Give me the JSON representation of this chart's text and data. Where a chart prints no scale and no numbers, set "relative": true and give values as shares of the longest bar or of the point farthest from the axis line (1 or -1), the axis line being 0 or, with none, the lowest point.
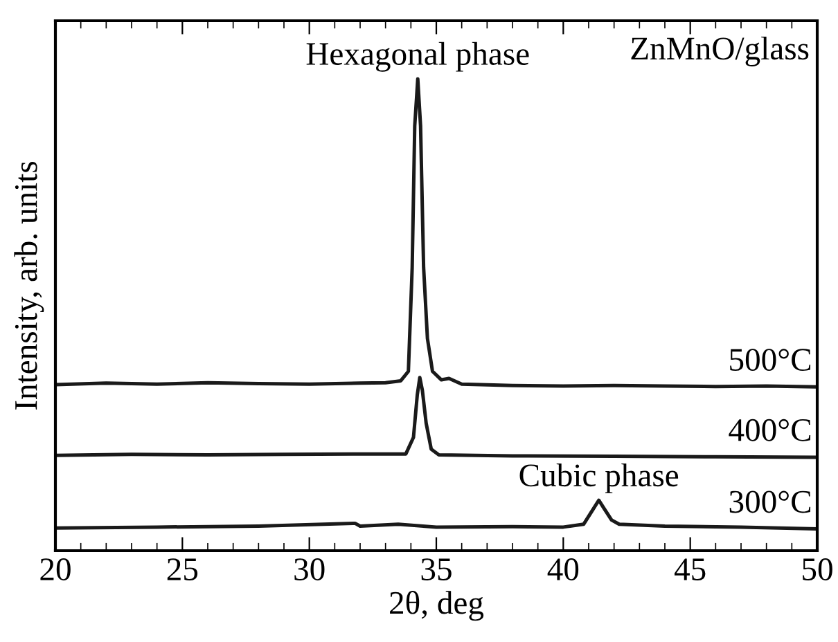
{
  "chart_data": {
    "type": "line",
    "relative": true,
    "xlabel": "2θ, deg",
    "ylabel": "Intensity, arb. units",
    "xlim": [
      20,
      50
    ],
    "xticks": [
      20,
      25,
      30,
      35,
      40,
      45,
      50
    ],
    "legend": false,
    "grid": false,
    "marker": "none",
    "line_style": "solid",
    "annotations": [
      {
        "text": "Hexagonal phase",
        "x": 34.27,
        "y": 1.0
      },
      "ZnMnO/glass",
      {
        "text": "Cubic phase",
        "x": 41.4,
        "y": 0.107
      }
    ],
    "series": [
      {
        "name": "500°C",
        "color": "#1a1a1a",
        "x": [
          20,
          22,
          24,
          26,
          28,
          30,
          32,
          33,
          33.6,
          33.9,
          34.05,
          34.15,
          34.27,
          34.38,
          34.5,
          34.65,
          34.85,
          35.2,
          35.5,
          36,
          38,
          40,
          42,
          44,
          46,
          48,
          50
        ],
        "values": [
          0.352,
          0.355,
          0.353,
          0.356,
          0.354,
          0.353,
          0.355,
          0.356,
          0.36,
          0.38,
          0.6,
          0.9,
          1.0,
          0.9,
          0.6,
          0.45,
          0.38,
          0.362,
          0.365,
          0.353,
          0.35,
          0.349,
          0.35,
          0.349,
          0.348,
          0.349,
          0.347
        ]
      },
      {
        "name": "400°C",
        "color": "#1a1a1a",
        "x": [
          20,
          23,
          26,
          29,
          32,
          33.8,
          34.1,
          34.25,
          34.35,
          34.45,
          34.6,
          34.8,
          35.1,
          38,
          42,
          46,
          50
        ],
        "values": [
          0.202,
          0.204,
          0.203,
          0.204,
          0.205,
          0.205,
          0.24,
          0.33,
          0.367,
          0.34,
          0.27,
          0.215,
          0.203,
          0.201,
          0.2,
          0.199,
          0.198
        ]
      },
      {
        "name": "300°C",
        "color": "#1a1a1a",
        "x": [
          20,
          24,
          28,
          31.8,
          32,
          33.5,
          35,
          38,
          40,
          40.8,
          41.2,
          41.4,
          41.6,
          41.9,
          42.2,
          44,
          47,
          50
        ],
        "values": [
          0.048,
          0.05,
          0.052,
          0.058,
          0.052,
          0.056,
          0.05,
          0.051,
          0.05,
          0.056,
          0.09,
          0.107,
          0.09,
          0.065,
          0.056,
          0.052,
          0.05,
          0.046
        ]
      }
    ]
  }
}
